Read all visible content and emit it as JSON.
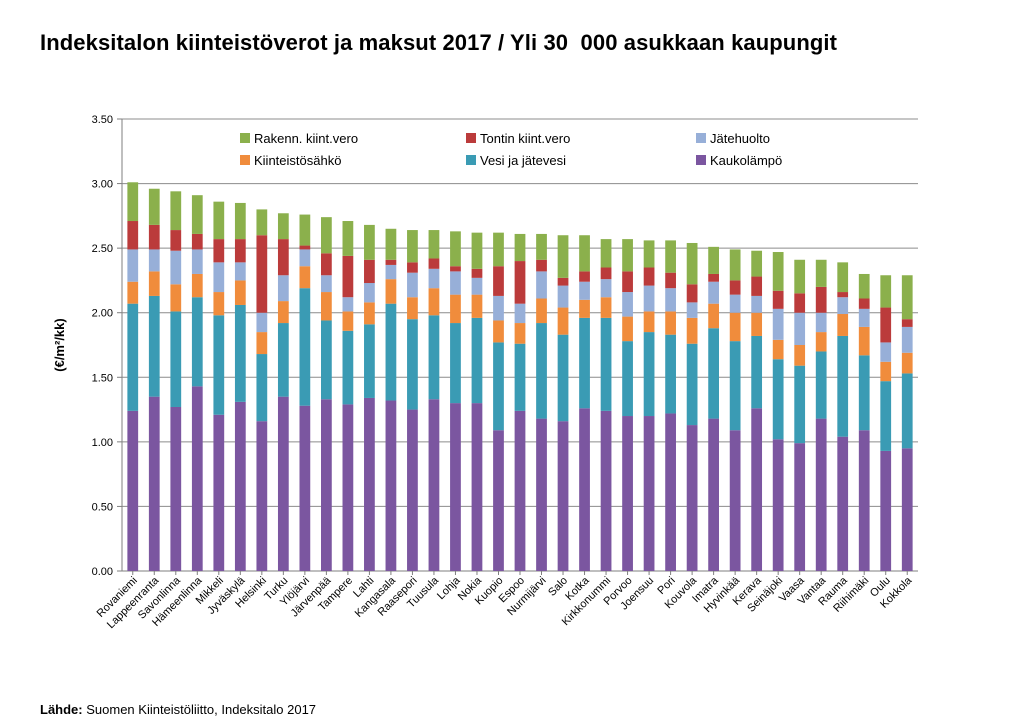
{
  "title": "Indeksitalon kiinteistöverot ja maksut 2017 / Yli 30  000 asukkaan kaupungit",
  "source": {
    "label": "Lähde:",
    "text": " Suomen Kiinteistöliitto, Indeksitalo 2017"
  },
  "colors": {
    "kaukolampo": "#7b56a0",
    "vesi": "#3a9bb4",
    "sahko": "#f08c3c",
    "jate": "#97afd8",
    "tontti": "#bb3b3b",
    "rakenn": "#8bb04c"
  },
  "chart_data": {
    "type": "bar",
    "stacked": true,
    "ylabel": "(€/m²/kk)",
    "ylim": [
      0,
      3.5
    ],
    "yticks": [
      "0.00",
      "0.50",
      "1.00",
      "1.50",
      "2.00",
      "2.50",
      "3.00",
      "3.50"
    ],
    "grid": true,
    "legend_position": "top",
    "categories": [
      "Rovaniemi",
      "Lappeenranta",
      "Savonlinna",
      "Hämeenlinna",
      "Mikkeli",
      "Jyväskylä",
      "Helsinki",
      "Turku",
      "Ylöjärvi",
      "Järvenpää",
      "Tampere",
      "Lahti",
      "Kangasala",
      "Raasepori",
      "Tuusula",
      "Lohja",
      "Nokia",
      "Kuopio",
      "Espoo",
      "Nurmijärvi",
      "Salo",
      "Kotka",
      "Kirkkonummi",
      "Porvoo",
      "Joensuu",
      "Pori",
      "Kouvola",
      "Imatra",
      "Hyvinkää",
      "Kerava",
      "Seinäjoki",
      "Vaasa",
      "Vantaa",
      "Rauma",
      "Riihimäki",
      "Oulu",
      "Kokkola"
    ],
    "series": [
      {
        "name": "Kaukolämpö",
        "color_key": "kaukolampo",
        "values": [
          1.24,
          1.35,
          1.27,
          1.43,
          1.21,
          1.31,
          1.16,
          1.35,
          1.28,
          1.33,
          1.29,
          1.34,
          1.32,
          1.25,
          1.33,
          1.3,
          1.3,
          1.09,
          1.24,
          1.18,
          1.16,
          1.26,
          1.24,
          1.2,
          1.2,
          1.22,
          1.13,
          1.18,
          1.09,
          1.26,
          1.02,
          0.99,
          1.18,
          1.04,
          1.09,
          0.93,
          0.95
        ]
      },
      {
        "name": "Vesi ja jätevesi",
        "color_key": "vesi",
        "values": [
          0.83,
          0.78,
          0.74,
          0.69,
          0.77,
          0.75,
          0.52,
          0.57,
          0.91,
          0.61,
          0.57,
          0.57,
          0.75,
          0.7,
          0.65,
          0.62,
          0.66,
          0.68,
          0.52,
          0.74,
          0.67,
          0.7,
          0.72,
          0.58,
          0.65,
          0.61,
          0.63,
          0.7,
          0.69,
          0.56,
          0.62,
          0.6,
          0.52,
          0.78,
          0.58,
          0.54,
          0.58
        ]
      },
      {
        "name": "Kiinteistösähkö",
        "color_key": "sahko",
        "values": [
          0.17,
          0.19,
          0.21,
          0.18,
          0.18,
          0.19,
          0.17,
          0.17,
          0.17,
          0.22,
          0.15,
          0.17,
          0.19,
          0.17,
          0.21,
          0.22,
          0.18,
          0.17,
          0.16,
          0.19,
          0.21,
          0.14,
          0.16,
          0.19,
          0.16,
          0.18,
          0.2,
          0.19,
          0.22,
          0.18,
          0.15,
          0.16,
          0.15,
          0.17,
          0.22,
          0.15,
          0.16
        ]
      },
      {
        "name": "Jätehuolto",
        "color_key": "jate",
        "values": [
          0.25,
          0.17,
          0.26,
          0.19,
          0.23,
          0.14,
          0.15,
          0.2,
          0.13,
          0.13,
          0.11,
          0.15,
          0.11,
          0.19,
          0.15,
          0.18,
          0.13,
          0.19,
          0.15,
          0.21,
          0.17,
          0.14,
          0.14,
          0.19,
          0.2,
          0.18,
          0.12,
          0.17,
          0.14,
          0.13,
          0.24,
          0.25,
          0.15,
          0.13,
          0.14,
          0.15,
          0.2
        ]
      },
      {
        "name": "Tontin kiint.vero",
        "color_key": "tontti",
        "values": [
          0.22,
          0.19,
          0.16,
          0.12,
          0.18,
          0.18,
          0.6,
          0.28,
          0.03,
          0.17,
          0.32,
          0.18,
          0.04,
          0.08,
          0.08,
          0.04,
          0.07,
          0.23,
          0.33,
          0.09,
          0.06,
          0.08,
          0.09,
          0.16,
          0.14,
          0.12,
          0.14,
          0.06,
          0.11,
          0.15,
          0.14,
          0.15,
          0.2,
          0.04,
          0.08,
          0.27,
          0.06
        ]
      },
      {
        "name": "Rakenn. kiint.vero",
        "color_key": "rakenn",
        "values": [
          0.3,
          0.28,
          0.3,
          0.3,
          0.29,
          0.28,
          0.2,
          0.2,
          0.24,
          0.28,
          0.27,
          0.27,
          0.24,
          0.25,
          0.22,
          0.27,
          0.28,
          0.26,
          0.21,
          0.2,
          0.33,
          0.28,
          0.22,
          0.25,
          0.21,
          0.25,
          0.32,
          0.21,
          0.24,
          0.2,
          0.3,
          0.26,
          0.21,
          0.23,
          0.19,
          0.25,
          0.34
        ]
      }
    ],
    "legend": [
      {
        "label": "Rakenn. kiint.vero",
        "color_key": "rakenn"
      },
      {
        "label": "Tontin kiint.vero",
        "color_key": "tontti"
      },
      {
        "label": "Jätehuolto",
        "color_key": "jate"
      },
      {
        "label": "Kiinteistösähkö",
        "color_key": "sahko"
      },
      {
        "label": "Vesi ja jätevesi",
        "color_key": "vesi"
      },
      {
        "label": "Kaukolämpö",
        "color_key": "kaukolampo"
      }
    ]
  }
}
